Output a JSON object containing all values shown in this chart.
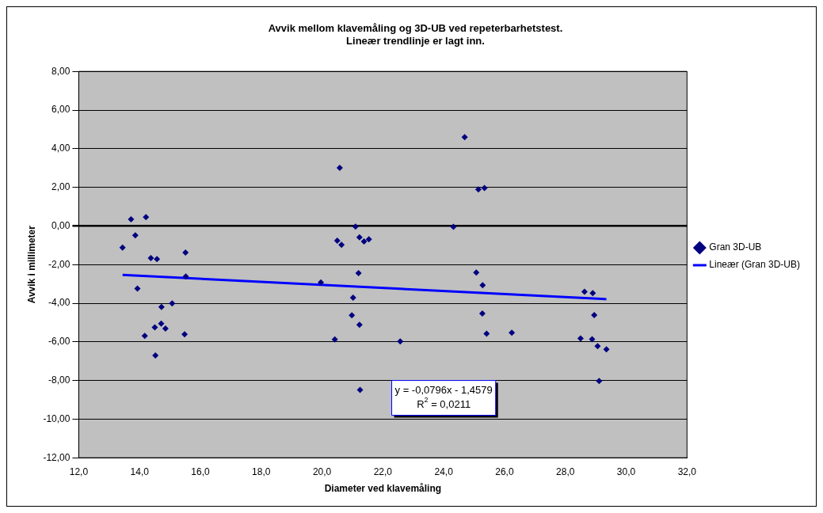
{
  "chart_data": {
    "type": "scatter",
    "title": "Avvik mellom klavemåling og 3D-UB ved repeterbarhetstest.\nLineær trendlinje er lagt inn.",
    "xlabel": "Diameter ved klavemåling",
    "ylabel": "Avvik i millimeter",
    "series": [
      {
        "name": "Gran 3D-UB",
        "color": "#000080",
        "marker": "diamond",
        "x": [
          13.72,
          14.21,
          13.86,
          13.44,
          14.37,
          14.57,
          15.51,
          15.52,
          13.93,
          15.07,
          14.72,
          14.5,
          14.71,
          14.85,
          14.17,
          15.48,
          14.52,
          20.58,
          24.69,
          25.14,
          25.34,
          21.1,
          24.32,
          20.5,
          20.64,
          21.23,
          21.38,
          21.54,
          19.96,
          21.2,
          25.07,
          25.28,
          21.02,
          25.27,
          20.98,
          21.23,
          20.42,
          22.57,
          25.41,
          26.24,
          21.25,
          28.63,
          28.9,
          28.95,
          28.5,
          28.88,
          29.06,
          29.35,
          29.11
        ],
        "values": [
          0.34,
          0.46,
          -0.49,
          -1.12,
          -1.66,
          -1.72,
          -1.38,
          -2.62,
          -3.24,
          -4.01,
          -4.19,
          -5.25,
          -5.06,
          -5.31,
          -5.69,
          -5.61,
          -6.71,
          3.01,
          4.6,
          1.89,
          1.96,
          -0.03,
          -0.04,
          -0.76,
          -0.98,
          -0.59,
          -0.8,
          -0.69,
          -2.92,
          -2.44,
          -2.41,
          -3.07,
          -3.71,
          -4.53,
          -4.63,
          -5.12,
          -5.88,
          -5.98,
          -5.58,
          -5.53,
          -8.49,
          -3.41,
          -3.48,
          -4.61,
          -5.82,
          -5.86,
          -6.22,
          -6.39,
          -8.03
        ]
      },
      {
        "name": "Lineær (Gran 3D-UB)",
        "type": "line",
        "color": "#0000ff",
        "marker": "none",
        "x": [
          13.44,
          29.35
        ],
        "values": [
          -2.53,
          -3.79
        ]
      }
    ],
    "annotations": [
      "y = -0,0796x - 1,4579\nR$^{2}$ = 0,0211"
    ],
    "xlim": [
      12,
      32
    ],
    "xticks": [
      {
        "value": 12,
        "label": "12,0"
      },
      {
        "value": 14,
        "label": "14,0"
      },
      {
        "value": 16,
        "label": "16,0"
      },
      {
        "value": 18,
        "label": "18,0"
      },
      {
        "value": 20,
        "label": "20,0"
      },
      {
        "value": 22,
        "label": "22,0"
      },
      {
        "value": 24,
        "label": "24,0"
      },
      {
        "value": 26,
        "label": "26,0"
      },
      {
        "value": 28,
        "label": "28,0"
      },
      {
        "value": 30,
        "label": "30,0"
      },
      {
        "value": 32,
        "label": "32,0"
      }
    ],
    "ylim": [
      -12,
      8
    ],
    "yticks": [
      {
        "value": -12,
        "label": "-12,00"
      },
      {
        "value": -10,
        "label": "-10,00"
      },
      {
        "value": -8,
        "label": "-8,00"
      },
      {
        "value": -6,
        "label": "-6,00"
      },
      {
        "value": -4,
        "label": "-4,00"
      },
      {
        "value": -2,
        "label": "-2,00"
      },
      {
        "value": 0,
        "label": "0,00"
      },
      {
        "value": 2,
        "label": "2,00"
      },
      {
        "value": 4,
        "label": "4,00"
      },
      {
        "value": 6,
        "label": "6,00"
      },
      {
        "value": 8,
        "label": "8,00"
      }
    ],
    "grid": "y",
    "legend": "right"
  }
}
